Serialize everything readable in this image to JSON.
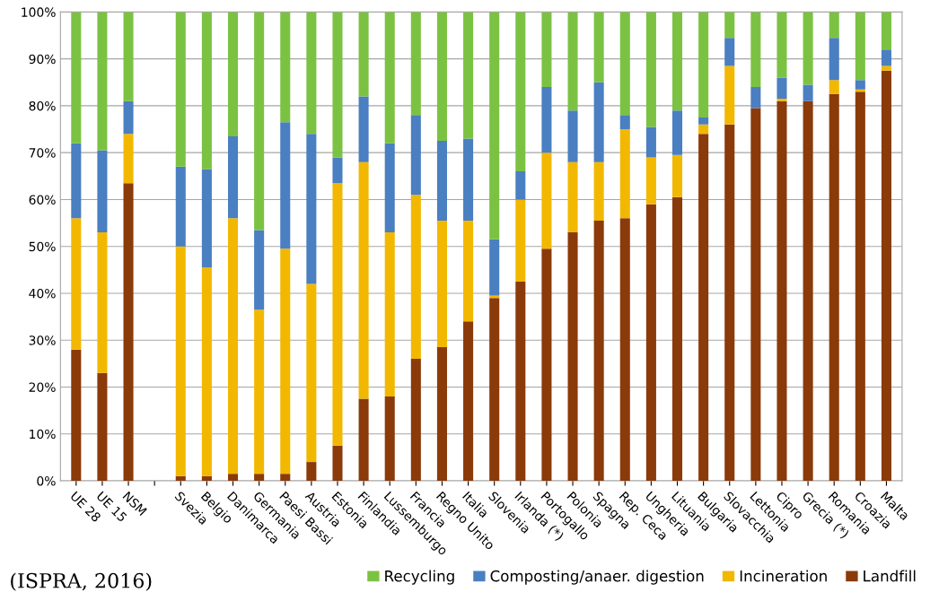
{
  "chart_data": {
    "type": "bar",
    "stacked": true,
    "categories": [
      "UE 28",
      "UE 15",
      "NSM",
      null,
      "Svezia",
      "Belgio",
      "Danimarca",
      "Germania",
      "Paesi Bassi",
      "Austria",
      "Estonia",
      "Finlandia",
      "Lussemburgo",
      "Francia",
      "Regno Unito",
      "Italia",
      "Slovenia",
      "Irlanda (*)",
      "Portogallo",
      "Polonia",
      "Spagna",
      "Rep. Ceca",
      "Ungheria",
      "Lituania",
      "Bulgaria",
      "Slovacchia",
      "Lettonia",
      "Cipro",
      "Grecia (*)",
      "Romania",
      "Croazia",
      "Malta"
    ],
    "series": [
      {
        "name": "Landfill",
        "color": "#8b3a0a",
        "values": [
          28,
          23,
          63.5,
          null,
          1,
          1,
          1.5,
          1.5,
          1.5,
          4,
          7.5,
          17.5,
          18,
          26,
          28.5,
          34,
          39,
          42.5,
          49.5,
          53,
          55.5,
          56,
          59,
          60.5,
          74,
          76,
          79.5,
          81,
          81,
          82.5,
          83,
          87.5
        ]
      },
      {
        "name": "Incineration",
        "color": "#f2b800",
        "values": [
          28,
          30,
          10.5,
          null,
          49,
          44.5,
          54.5,
          35,
          48,
          38,
          56,
          50.5,
          35,
          35,
          27,
          21.5,
          0.5,
          17.5,
          20.5,
          15,
          12.5,
          19,
          10,
          9,
          2,
          12.5,
          0,
          0.5,
          0,
          3,
          0.5,
          1
        ]
      },
      {
        "name": "Composting/anaer. digestion",
        "color": "#4a7fc1",
        "values": [
          16,
          17.5,
          7,
          null,
          17,
          21,
          17.5,
          17,
          27,
          32,
          5.5,
          14,
          19,
          17,
          17,
          17.5,
          12,
          6,
          14,
          11,
          17,
          3,
          6.5,
          9.5,
          1.5,
          6,
          4.5,
          4.5,
          3.5,
          9,
          2,
          3.5
        ]
      },
      {
        "name": "Recycling",
        "color": "#7cc242",
        "values": [
          28,
          29.5,
          19,
          null,
          33,
          33.5,
          26.5,
          46.5,
          23.5,
          26,
          31,
          18,
          28,
          22,
          27.5,
          27,
          48.5,
          34,
          16,
          21,
          15,
          22,
          24.5,
          21,
          22.5,
          5.5,
          16,
          14,
          15.5,
          5.5,
          14.5,
          8
        ]
      }
    ],
    "ylim": [
      0,
      100
    ],
    "yticks": [
      {
        "value": 0,
        "label": "0%"
      },
      {
        "value": 10,
        "label": "10%"
      },
      {
        "value": 20,
        "label": "20%"
      },
      {
        "value": 30,
        "label": "30%"
      },
      {
        "value": 40,
        "label": "40%"
      },
      {
        "value": 50,
        "label": "50%"
      },
      {
        "value": 60,
        "label": "60%"
      },
      {
        "value": 70,
        "label": "70%"
      },
      {
        "value": 80,
        "label": "80%"
      },
      {
        "value": 90,
        "label": "90%"
      },
      {
        "value": 100,
        "label": "100%"
      }
    ],
    "grid": "y",
    "legend": "bottom",
    "annotations": [
      "(ISPRA, 2016)"
    ]
  }
}
